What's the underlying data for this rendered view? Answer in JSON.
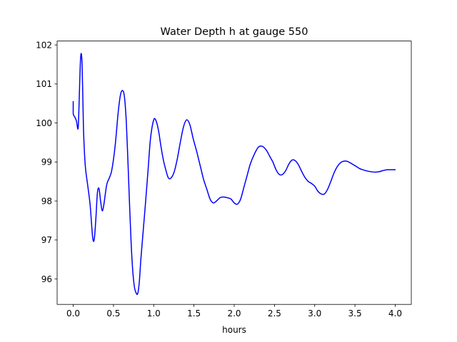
{
  "chart_data": {
    "type": "line",
    "title": "Water Depth h at gauge 550",
    "xlabel": "hours",
    "ylabel": "",
    "xlim": [
      -0.2,
      4.2
    ],
    "ylim": [
      95.35,
      102.1
    ],
    "xticks": [
      0.0,
      0.5,
      1.0,
      1.5,
      2.0,
      2.5,
      3.0,
      3.5,
      4.0
    ],
    "xtick_labels": [
      "0.0",
      "0.5",
      "1.0",
      "1.5",
      "2.0",
      "2.5",
      "3.0",
      "3.5",
      "4.0"
    ],
    "yticks": [
      96,
      97,
      98,
      99,
      100,
      101,
      102
    ],
    "ytick_labels": [
      "96",
      "97",
      "98",
      "99",
      "100",
      "101",
      "102"
    ],
    "grid": false,
    "legend": "none",
    "series": [
      {
        "color": "#0000ff",
        "x": [
          0.0,
          0.0,
          0.005,
          0.02,
          0.04,
          0.06,
          0.07,
          0.08,
          0.09,
          0.1,
          0.11,
          0.12,
          0.13,
          0.15,
          0.18,
          0.21,
          0.24,
          0.26,
          0.28,
          0.3,
          0.32,
          0.34,
          0.36,
          0.38,
          0.4,
          0.42,
          0.45,
          0.48,
          0.52,
          0.56,
          0.59,
          0.62,
          0.64,
          0.66,
          0.68,
          0.7,
          0.72,
          0.74,
          0.76,
          0.78,
          0.8,
          0.82,
          0.84,
          0.86,
          0.88,
          0.9,
          0.93,
          0.96,
          1.0,
          1.03,
          1.06,
          1.09,
          1.12,
          1.15,
          1.18,
          1.21,
          1.25,
          1.29,
          1.33,
          1.37,
          1.41,
          1.45,
          1.49,
          1.53,
          1.56,
          1.59,
          1.62,
          1.66,
          1.7,
          1.74,
          1.78,
          1.82,
          1.85,
          1.88,
          1.92,
          1.96,
          2.0,
          2.04,
          2.08,
          2.12,
          2.16,
          2.2,
          2.25,
          2.3,
          2.35,
          2.4,
          2.44,
          2.48,
          2.52,
          2.56,
          2.6,
          2.64,
          2.68,
          2.72,
          2.76,
          2.8,
          2.84,
          2.88,
          2.92,
          2.96,
          3.0,
          3.04,
          3.08,
          3.12,
          3.16,
          3.2,
          3.24,
          3.28,
          3.32,
          3.36,
          3.4,
          3.44,
          3.48,
          3.52,
          3.56,
          3.6,
          3.65,
          3.7,
          3.75,
          3.8,
          3.85,
          3.9,
          3.95,
          4.0
        ],
        "y": [
          100.55,
          100.25,
          100.2,
          100.15,
          100.05,
          99.85,
          100.3,
          101.0,
          101.6,
          101.78,
          101.5,
          100.6,
          99.7,
          98.9,
          98.4,
          97.9,
          97.1,
          97.0,
          97.5,
          98.2,
          98.32,
          98.0,
          97.75,
          97.9,
          98.2,
          98.45,
          98.6,
          98.8,
          99.4,
          100.3,
          100.75,
          100.82,
          100.6,
          100.0,
          99.0,
          97.9,
          96.9,
          96.2,
          95.8,
          95.65,
          95.62,
          95.9,
          96.5,
          97.0,
          97.5,
          98.0,
          98.8,
          99.6,
          100.08,
          100.05,
          99.8,
          99.4,
          99.05,
          98.8,
          98.6,
          98.58,
          98.72,
          99.05,
          99.5,
          99.9,
          100.08,
          99.95,
          99.6,
          99.3,
          99.05,
          98.8,
          98.55,
          98.3,
          98.05,
          97.95,
          98.0,
          98.08,
          98.1,
          98.1,
          98.08,
          98.05,
          97.95,
          97.92,
          98.05,
          98.35,
          98.65,
          98.95,
          99.2,
          99.38,
          99.4,
          99.3,
          99.15,
          99.0,
          98.8,
          98.68,
          98.68,
          98.78,
          98.95,
          99.05,
          99.03,
          98.92,
          98.75,
          98.6,
          98.5,
          98.45,
          98.38,
          98.25,
          98.18,
          98.18,
          98.3,
          98.5,
          98.72,
          98.88,
          98.98,
          99.02,
          99.02,
          98.98,
          98.93,
          98.88,
          98.83,
          98.8,
          98.77,
          98.75,
          98.74,
          98.75,
          98.78,
          98.8,
          98.8,
          98.8
        ]
      }
    ]
  }
}
